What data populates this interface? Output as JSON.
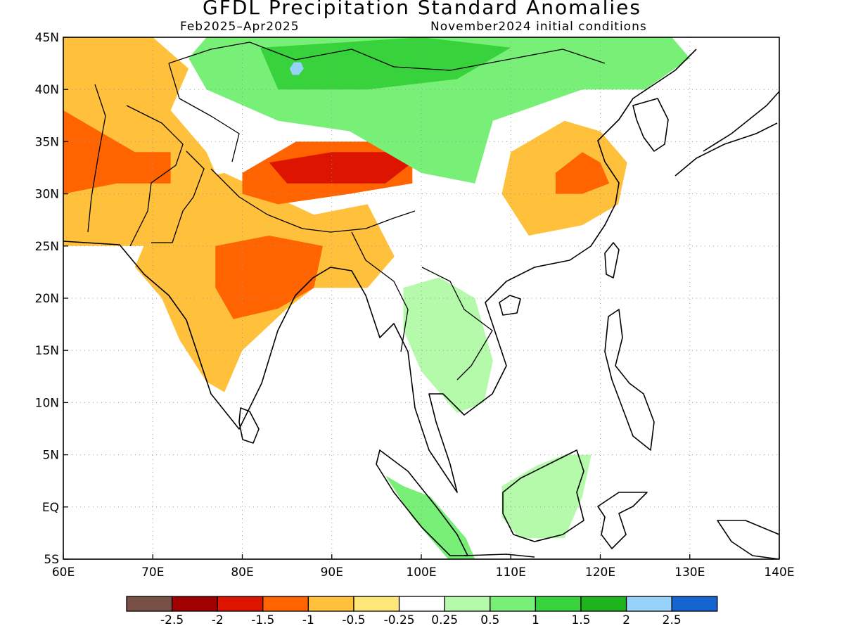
{
  "title": "GFDL Precipitation Standard Anomalies",
  "period": "Feb2025–Apr2025",
  "initial_conditions": "November2024 initial conditions",
  "map": {
    "lon_range": [
      60,
      140
    ],
    "lat_range": [
      -5,
      45
    ],
    "lon_ticks": [
      {
        "value": 60,
        "label": "60E"
      },
      {
        "value": 70,
        "label": "70E"
      },
      {
        "value": 80,
        "label": "80E"
      },
      {
        "value": 90,
        "label": "90E"
      },
      {
        "value": 100,
        "label": "100E"
      },
      {
        "value": 110,
        "label": "110E"
      },
      {
        "value": 120,
        "label": "120E"
      },
      {
        "value": 130,
        "label": "130E"
      },
      {
        "value": 140,
        "label": "140E"
      }
    ],
    "lat_ticks": [
      {
        "value": 45,
        "label": "45N"
      },
      {
        "value": 40,
        "label": "40N"
      },
      {
        "value": 35,
        "label": "35N"
      },
      {
        "value": 30,
        "label": "30N"
      },
      {
        "value": 25,
        "label": "25N"
      },
      {
        "value": 20,
        "label": "20N"
      },
      {
        "value": 15,
        "label": "15N"
      },
      {
        "value": 10,
        "label": "10N"
      },
      {
        "value": 5,
        "label": "5N"
      },
      {
        "value": 0,
        "label": "EQ"
      },
      {
        "value": -5,
        "label": "5S"
      }
    ],
    "grid": true,
    "regions": [
      {
        "name": "Iran and Afghanistan",
        "level": -1,
        "color": "#ffc03c",
        "lonlat": [
          [
            60,
            45
          ],
          [
            70,
            45
          ],
          [
            74,
            42
          ],
          [
            72,
            38
          ],
          [
            76,
            34
          ],
          [
            78,
            30
          ],
          [
            75,
            25
          ],
          [
            68,
            25
          ],
          [
            60,
            25
          ]
        ]
      },
      {
        "name": "Afghanistan core",
        "level": -1.5,
        "color": "#ff6400",
        "lonlat": [
          [
            60,
            38
          ],
          [
            64,
            36
          ],
          [
            68,
            34
          ],
          [
            72,
            34
          ],
          [
            72,
            31
          ],
          [
            66,
            31
          ],
          [
            60,
            30
          ]
        ]
      },
      {
        "name": "India",
        "level": -1,
        "color": "#ffc03c",
        "lonlat": [
          [
            72,
            31
          ],
          [
            78,
            32
          ],
          [
            88,
            28
          ],
          [
            94,
            29
          ],
          [
            97,
            24
          ],
          [
            94,
            21
          ],
          [
            88,
            21
          ],
          [
            85,
            19
          ],
          [
            80,
            15
          ],
          [
            78,
            11
          ],
          [
            76,
            12
          ],
          [
            73,
            16
          ],
          [
            71,
            20
          ],
          [
            68,
            23
          ],
          [
            70,
            27
          ]
        ]
      },
      {
        "name": "Central India",
        "level": -1.5,
        "color": "#ff6400",
        "lonlat": [
          [
            77,
            25
          ],
          [
            83,
            26
          ],
          [
            89,
            25
          ],
          [
            88,
            21
          ],
          [
            84,
            19
          ],
          [
            79,
            18
          ],
          [
            77,
            21
          ]
        ]
      },
      {
        "name": "Tibet",
        "level": -1.5,
        "color": "#ff6400",
        "lonlat": [
          [
            80,
            32
          ],
          [
            86,
            35
          ],
          [
            94,
            35
          ],
          [
            99,
            34
          ],
          [
            99,
            31
          ],
          [
            92,
            30
          ],
          [
            84,
            29
          ],
          [
            80,
            30
          ]
        ]
      },
      {
        "name": "Tibet core",
        "level": -2,
        "color": "#dc1400",
        "lonlat": [
          [
            83,
            33
          ],
          [
            90,
            34
          ],
          [
            96,
            34
          ],
          [
            99,
            33
          ],
          [
            96,
            31
          ],
          [
            90,
            31
          ],
          [
            85,
            31
          ]
        ]
      },
      {
        "name": "Eastern China",
        "level": -1,
        "color": "#ffc03c",
        "lonlat": [
          [
            110,
            34
          ],
          [
            116,
            37
          ],
          [
            120,
            36
          ],
          [
            123,
            33
          ],
          [
            122,
            29
          ],
          [
            118,
            27
          ],
          [
            112,
            26
          ],
          [
            109,
            30
          ]
        ]
      },
      {
        "name": "Yangtze core",
        "level": -1.5,
        "color": "#ff6400",
        "lonlat": [
          [
            115,
            32
          ],
          [
            118,
            34
          ],
          [
            120,
            33
          ],
          [
            121,
            31
          ],
          [
            118,
            30
          ],
          [
            115,
            30
          ]
        ]
      },
      {
        "name": "Mongolia and Northwest China",
        "level": 1,
        "color": "#78f078",
        "lonlat": [
          [
            76,
            45
          ],
          [
            128,
            45
          ],
          [
            130,
            43
          ],
          [
            125,
            40
          ],
          [
            118,
            40
          ],
          [
            108,
            37
          ],
          [
            106,
            31
          ],
          [
            100,
            32
          ],
          [
            92,
            36
          ],
          [
            84,
            37
          ],
          [
            76,
            40
          ],
          [
            74,
            43
          ]
        ]
      },
      {
        "name": "Northern Mongolia",
        "level": 1.5,
        "color": "#37d23c",
        "lonlat": [
          [
            82,
            44
          ],
          [
            100,
            45
          ],
          [
            110,
            44
          ],
          [
            104,
            41
          ],
          [
            94,
            40
          ],
          [
            84,
            40
          ]
        ]
      },
      {
        "name": "Borneo",
        "level": 0.5,
        "color": "#b4faaa",
        "lonlat": [
          [
            109,
            2
          ],
          [
            113,
            4
          ],
          [
            116,
            5
          ],
          [
            119,
            5
          ],
          [
            118,
            1
          ],
          [
            116,
            -3
          ],
          [
            111,
            -3
          ],
          [
            109,
            -1
          ]
        ]
      },
      {
        "name": "Sumatra",
        "level": 1,
        "color": "#78f078",
        "lonlat": [
          [
            98,
            2
          ],
          [
            101,
            1
          ],
          [
            105,
            -3
          ],
          [
            106,
            -5
          ],
          [
            103,
            -5
          ],
          [
            99,
            -1
          ],
          [
            96,
            3
          ]
        ]
      },
      {
        "name": "Indochina",
        "level": 0.5,
        "color": "#b4faaa",
        "lonlat": [
          [
            98,
            21
          ],
          [
            102,
            22
          ],
          [
            106,
            20
          ],
          [
            108,
            14
          ],
          [
            107,
            10
          ],
          [
            104,
            9
          ],
          [
            100,
            13
          ],
          [
            98,
            17
          ]
        ]
      }
    ],
    "anomaly_spots": [
      {
        "name": "Northern Mongolia wet spot",
        "lon": 86,
        "lat": 42,
        "level": 2,
        "color": "#96d2fa"
      }
    ]
  },
  "legend": {
    "bins": [
      {
        "color": "#785046"
      },
      {
        "color": "#a00000"
      },
      {
        "color": "#dc1400"
      },
      {
        "color": "#ff6400"
      },
      {
        "color": "#ffc03c"
      },
      {
        "color": "#ffe678"
      },
      {
        "color": "#ffffff"
      },
      {
        "color": "#b4faaa"
      },
      {
        "color": "#78f078"
      },
      {
        "color": "#37d23c"
      },
      {
        "color": "#1eb41e"
      },
      {
        "color": "#96d2fa"
      },
      {
        "color": "#1464d2"
      }
    ],
    "labels": [
      "-2.5",
      "-2",
      "-1.5",
      "-1",
      "-0.5",
      "-0.25",
      "0.25",
      "0.5",
      "1",
      "1.5",
      "2",
      "2.5"
    ]
  }
}
